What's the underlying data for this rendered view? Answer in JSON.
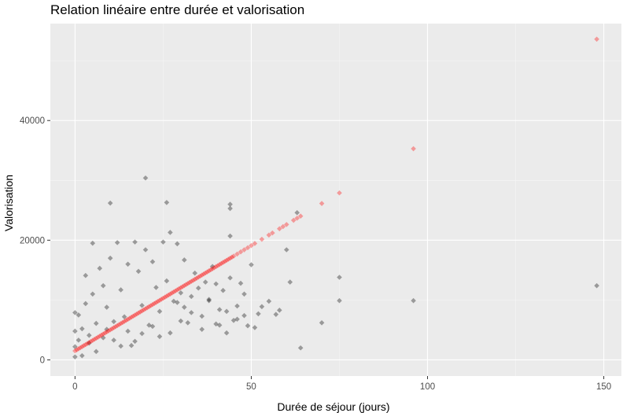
{
  "chart_data": {
    "type": "scatter",
    "title": "Relation linéaire entre durée et valorisation",
    "xlabel": "Durée de séjour (jours)",
    "ylabel": "Valorisation",
    "xlim": [
      -7,
      155
    ],
    "ylim": [
      -2700,
      56200
    ],
    "xticks": [
      0,
      50,
      100,
      150
    ],
    "xtick_labels": [
      "0",
      "50",
      "100",
      "150"
    ],
    "yticks": [
      0,
      20000,
      40000
    ],
    "ytick_labels": [
      "0",
      "20000",
      "40000"
    ],
    "grid": true,
    "legend": "none",
    "colors": {
      "panel_background": "#ebebeb",
      "grid_major": "#ffffff",
      "grid_minor": "#f5f5f5",
      "observed_points": "#000000",
      "fitted_points": "#ff0000"
    },
    "series": [
      {
        "role": "observed",
        "color": "#000000",
        "opacity": 0.35,
        "points": [
          [
            148,
            12400
          ],
          [
            96,
            9900
          ],
          [
            75,
            13800
          ],
          [
            75,
            9900
          ],
          [
            70,
            6200
          ],
          [
            64,
            2000
          ],
          [
            63,
            24600
          ],
          [
            61,
            13000
          ],
          [
            60,
            18400
          ],
          [
            58,
            8300
          ],
          [
            57,
            7600
          ],
          [
            55,
            9800
          ],
          [
            52,
            7700
          ],
          [
            50,
            15900
          ],
          [
            49,
            5700
          ],
          [
            48,
            11000
          ],
          [
            47,
            12800
          ],
          [
            46,
            9000
          ],
          [
            45,
            6600
          ],
          [
            44,
            26000
          ],
          [
            44,
            25300
          ],
          [
            44,
            20700
          ],
          [
            44,
            13700
          ],
          [
            43,
            4500
          ],
          [
            42,
            11600
          ],
          [
            41,
            8400
          ],
          [
            40,
            12700
          ],
          [
            40,
            6000
          ],
          [
            39,
            15600
          ],
          [
            38,
            10100
          ],
          [
            37,
            13000
          ],
          [
            36,
            5100
          ],
          [
            35,
            12000
          ],
          [
            34,
            14500
          ],
          [
            33,
            7900
          ],
          [
            32,
            6200
          ],
          [
            31,
            16700
          ],
          [
            30,
            11200
          ],
          [
            29,
            19400
          ],
          [
            28,
            9800
          ],
          [
            27,
            21300
          ],
          [
            26,
            26300
          ],
          [
            26,
            13200
          ],
          [
            25,
            19700
          ],
          [
            24,
            8100
          ],
          [
            23,
            12100
          ],
          [
            22,
            16400
          ],
          [
            21,
            5800
          ],
          [
            20,
            30400
          ],
          [
            20,
            18400
          ],
          [
            19,
            4400
          ],
          [
            18,
            14800
          ],
          [
            17,
            19700
          ],
          [
            16,
            2400
          ],
          [
            15,
            16000
          ],
          [
            14,
            7200
          ],
          [
            13,
            11700
          ],
          [
            12,
            19600
          ],
          [
            11,
            3300
          ],
          [
            10,
            26200
          ],
          [
            10,
            17000
          ],
          [
            9,
            8800
          ],
          [
            8,
            12400
          ],
          [
            7,
            15300
          ],
          [
            6,
            6100
          ],
          [
            5,
            11000
          ],
          [
            5,
            19500
          ],
          [
            4,
            2800
          ],
          [
            3,
            9400
          ],
          [
            3,
            14100
          ],
          [
            2,
            700
          ],
          [
            2,
            5200
          ],
          [
            1,
            7500
          ],
          [
            1,
            3300
          ],
          [
            0,
            500
          ],
          [
            0,
            2200
          ],
          [
            0,
            4800
          ],
          [
            0,
            7900
          ],
          [
            29,
            9600
          ],
          [
            30,
            6500
          ],
          [
            31,
            8800
          ],
          [
            33,
            10600
          ],
          [
            36,
            7300
          ],
          [
            38,
            9900
          ],
          [
            41,
            5800
          ],
          [
            43,
            8100
          ],
          [
            46,
            6800
          ],
          [
            48,
            7400
          ],
          [
            51,
            5400
          ],
          [
            53,
            8900
          ],
          [
            27,
            4500
          ],
          [
            24,
            3900
          ],
          [
            22,
            5600
          ],
          [
            19,
            9100
          ],
          [
            17,
            3100
          ],
          [
            15,
            4800
          ],
          [
            13,
            2300
          ],
          [
            11,
            6400
          ],
          [
            9,
            5100
          ],
          [
            8,
            3700
          ],
          [
            6,
            1400
          ],
          [
            4,
            4100
          ]
        ]
      },
      {
        "role": "fitted",
        "color": "#ff0000",
        "opacity": 0.35,
        "intercept": 1500,
        "slope": 352,
        "x_min": 0,
        "x_max": 45,
        "isolated_x": [
          46,
          47,
          48,
          49,
          50,
          51,
          53,
          55,
          56,
          58,
          59,
          60,
          62,
          63,
          64,
          70,
          75,
          96,
          148
        ]
      }
    ]
  }
}
